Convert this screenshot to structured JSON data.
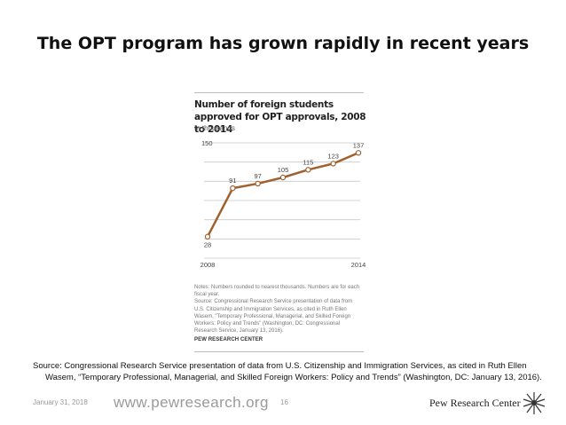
{
  "slide": {
    "title": "The OPT program has grown rapidly in recent years",
    "source_line1": "Source: Congressional Research Service presentation of data from U.S. Citizenship and Immigration Services, as cited in Ruth Ellen",
    "source_line2": "Wasem, “Temporary Professional, Managerial, and Skilled Foreign Workers: Policy and Trends” (Washington, DC: January 13, 2016).",
    "date": "January 31, 2018",
    "url": "www.pewresearch.org",
    "page": "16",
    "brand": "Pew Research Center"
  },
  "chart_data": {
    "type": "line",
    "title": "Number of foreign students approved for OPT approvals, 2008 to 2014",
    "subtitle": "In thousands",
    "x": [
      2008,
      2009,
      2010,
      2011,
      2012,
      2013,
      2014
    ],
    "values": [
      28,
      91,
      97,
      105,
      115,
      123,
      137
    ],
    "data_labels": [
      "28",
      "91",
      "97",
      "105",
      "115",
      "123",
      "137"
    ],
    "x_tick_labels": [
      "2008",
      "2014"
    ],
    "y_tick_labels": [
      "150"
    ],
    "ylim": [
      0,
      150
    ],
    "xlabel": "",
    "ylabel": "",
    "grid": true,
    "line_color": "#a0612e",
    "notes": "Notes: Numbers rounded to nearest thousands. Numbers are for each fiscal year.",
    "source": "Source: Congressional Research Service presentation of data from U.S. Citizenship and Immigration Services, as cited in Ruth Ellen Wasem, “Temporary Professional, Managerial, and Skilled Foreign Workers: Policy and Trends” (Washington, DC: Congressional Research Service, January 13, 2016).",
    "credit": "PEW RESEARCH CENTER"
  }
}
